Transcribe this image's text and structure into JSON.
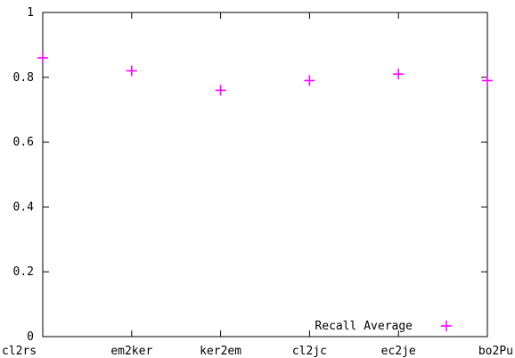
{
  "chart_data": {
    "type": "scatter",
    "title": "",
    "xlabel": "",
    "ylabel": "",
    "categories": [
      "cl2rs",
      "em2ker",
      "ker2em",
      "cl2jc",
      "ec2je",
      "bo2Pu"
    ],
    "ylim": [
      0,
      1
    ],
    "yticks": [
      "0",
      "0.2",
      "0.4",
      "0.6",
      "0.8",
      "1"
    ],
    "grid": false,
    "legend_position": "bottom-right",
    "series": [
      {
        "name": "Recall Average",
        "color": "#ff00ff",
        "marker": "plus",
        "values": [
          0.86,
          0.82,
          0.76,
          0.79,
          0.81,
          0.79
        ]
      }
    ]
  }
}
